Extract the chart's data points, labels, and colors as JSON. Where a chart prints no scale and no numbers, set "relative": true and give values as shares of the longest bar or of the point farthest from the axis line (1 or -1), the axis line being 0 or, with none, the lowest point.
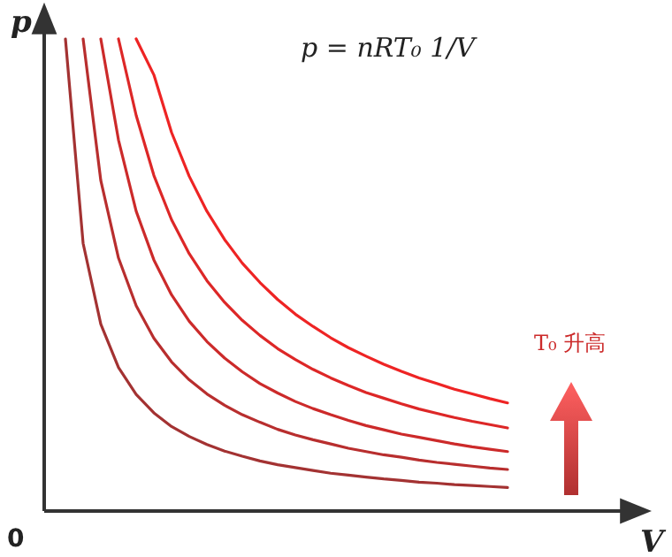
{
  "chart_data": {
    "type": "line",
    "relative": true,
    "xlabel": "V",
    "ylabel": "p",
    "annotations": [
      "0",
      "p = nRT₀ 1/V",
      "T₀ 升高"
    ],
    "categories": [
      null,
      null,
      null,
      null,
      null,
      null,
      null,
      null,
      null,
      null,
      null,
      null,
      null,
      null,
      null,
      null,
      null,
      null,
      null,
      null,
      null,
      null,
      null,
      null,
      null,
      null
    ],
    "series": [
      {
        "color": "#a33232",
        "values": [
          1.0,
          0.567,
          0.396,
          0.304,
          0.247,
          0.208,
          0.179,
          0.158,
          0.141,
          0.127,
          0.116,
          0.106,
          0.098,
          0.092,
          0.086,
          0.08,
          0.076,
          0.072,
          0.068,
          0.065,
          0.061,
          0.059,
          0.056,
          0.054,
          0.052,
          0.05
        ]
      },
      {
        "color": "#b82e2e",
        "values": [
          null,
          1.0,
          0.7,
          0.536,
          0.435,
          0.366,
          0.316,
          0.278,
          0.248,
          0.224,
          0.204,
          0.188,
          0.173,
          0.161,
          0.151,
          0.142,
          0.133,
          0.126,
          0.119,
          0.114,
          0.108,
          0.103,
          0.099,
          0.095,
          0.091,
          0.088
        ]
      },
      {
        "color": "#cc2a2a",
        "values": [
          null,
          null,
          1.0,
          0.786,
          0.635,
          0.532,
          0.458,
          0.402,
          0.359,
          0.324,
          0.295,
          0.27,
          0.25,
          0.232,
          0.217,
          0.204,
          0.192,
          0.181,
          0.172,
          0.163,
          0.156,
          0.149,
          0.142,
          0.136,
          0.131,
          0.126
        ]
      },
      {
        "color": "#dd2727",
        "values": [
          null,
          null,
          null,
          1.0,
          0.838,
          0.711,
          0.617,
          0.545,
          0.488,
          0.442,
          0.404,
          0.372,
          0.344,
          0.321,
          0.3,
          0.282,
          0.266,
          0.251,
          0.239,
          0.227,
          0.216,
          0.207,
          0.198,
          0.19,
          0.183,
          0.176
        ]
      },
      {
        "color": "#ee2424",
        "values": [
          null,
          null,
          null,
          null,
          1.0,
          0.924,
          0.802,
          0.709,
          0.635,
          0.575,
          0.525,
          0.484,
          0.448,
          0.417,
          0.391,
          0.367,
          0.346,
          0.328,
          0.311,
          0.296,
          0.282,
          0.27,
          0.258,
          0.248,
          0.238,
          0.229
        ]
      }
    ]
  }
}
